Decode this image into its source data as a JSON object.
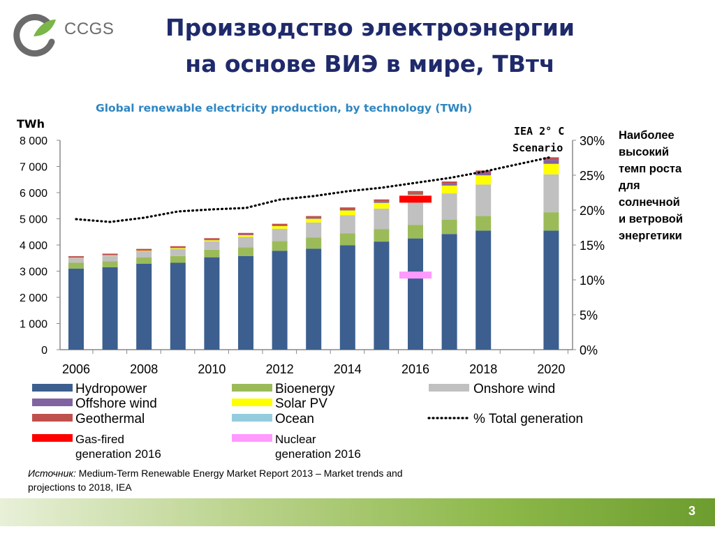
{
  "logo": {
    "text": "CCGS",
    "icon": "ccgs-leaf-ring-logo",
    "colors": {
      "ring": "#6b6b6b",
      "leaf": "#7ab648"
    }
  },
  "title": {
    "line1": "Производство электроэнергии",
    "line2": "на основе ВИЭ в мире, ТВтч"
  },
  "side_note": [
    "Наиболее",
    "высокий",
    "темп роста",
    "для",
    "солнечной",
    "и ветровой",
    "энергетики"
  ],
  "source": {
    "label": "Источник:",
    "text": " Medium-Term Renewable Energy Market Report 2013 – Market trends and projections to 2018, IEA"
  },
  "page_number": "3",
  "chart_data": {
    "type": "bar",
    "stacked": true,
    "title": "Global renewable electricity production, by technology (TWh)",
    "ylabel": "TWh",
    "ylim": [
      0,
      8000
    ],
    "y_ticks": [
      "0",
      "1 000",
      "2 000",
      "3 000",
      "4 000",
      "5 000",
      "6 000",
      "7 000",
      "8 000"
    ],
    "y2_lim": [
      0,
      30
    ],
    "y2_ticks": [
      "0%",
      "5%",
      "10%",
      "15%",
      "20%",
      "25%",
      "30%"
    ],
    "x_ticks": [
      "2006",
      "2008",
      "2010",
      "2012",
      "2014",
      "2016",
      "2018",
      "2020"
    ],
    "grid": false,
    "legend_placement": "bottom",
    "annotation": {
      "line1": "IEA 2° C",
      "line2": "Scenario"
    },
    "years": [
      2006,
      2007,
      2008,
      2009,
      2010,
      2011,
      2012,
      2013,
      2014,
      2015,
      2016,
      2017,
      2018,
      2020
    ],
    "series": [
      {
        "name": "Hydropower",
        "color": "#3c5f8f",
        "values": [
          3100,
          3150,
          3280,
          3320,
          3530,
          3580,
          3780,
          3860,
          3990,
          4130,
          4250,
          4420,
          4550,
          4550
        ]
      },
      {
        "name": "Bioenergy",
        "color": "#9bbb59",
        "values": [
          220,
          230,
          240,
          260,
          290,
          330,
          370,
          420,
          450,
          480,
          520,
          550,
          560,
          700
        ]
      },
      {
        "name": "Onshore wind",
        "color": "#c0c0c0",
        "values": [
          180,
          210,
          240,
          270,
          320,
          400,
          470,
          580,
          700,
          780,
          900,
          1000,
          1200,
          1450
        ]
      },
      {
        "name": "Solar PV",
        "color": "#ffff00",
        "values": [
          10,
          15,
          20,
          30,
          40,
          65,
          100,
          140,
          180,
          220,
          250,
          300,
          350,
          400
        ]
      },
      {
        "name": "Offshore wind",
        "color": "#8064a2",
        "values": [
          2,
          3,
          5,
          8,
          10,
          15,
          20,
          30,
          40,
          50,
          60,
          70,
          100,
          150
        ]
      },
      {
        "name": "Geothermal",
        "color": "#c0504d",
        "values": [
          60,
          60,
          65,
          65,
          70,
          70,
          70,
          75,
          75,
          80,
          80,
          85,
          85,
          100
        ]
      },
      {
        "name": "Ocean",
        "color": "#93cddd",
        "values": [
          1,
          1,
          1,
          1,
          1,
          1,
          1,
          1,
          1,
          1,
          1,
          1,
          1,
          1
        ]
      }
    ],
    "total_generation_pct": {
      "name": "% Total generation",
      "color": "#000000",
      "style": "dotted",
      "x": [
        2006,
        2007,
        2008,
        2009,
        2010,
        2011,
        2012,
        2013,
        2014,
        2015,
        2016,
        2017,
        2018,
        2020
      ],
      "y": [
        18.7,
        18.3,
        18.9,
        19.8,
        20.1,
        20.3,
        21.5,
        22.0,
        22.7,
        23.2,
        23.9,
        24.6,
        25.5,
        27.6
      ]
    },
    "markers": [
      {
        "name": "Gas-fired generation 2016",
        "color": "#ff0000",
        "year": 2016,
        "value": 5750
      },
      {
        "name": "Nuclear generation 2016",
        "color": "#ff99ff",
        "year": 2016,
        "value": 2850
      }
    ],
    "legend": [
      {
        "label": "Hydropower",
        "color": "#3c5f8f"
      },
      {
        "label": "Bioenergy",
        "color": "#9bbb59"
      },
      {
        "label": "Onshore wind",
        "color": "#c0c0c0"
      },
      {
        "label": "Offshore wind",
        "color": "#8064a2"
      },
      {
        "label": "Solar PV",
        "color": "#ffff00"
      },
      {
        "label": "Geothermal",
        "color": "#c0504d"
      },
      {
        "label": "Ocean",
        "color": "#93cddd"
      },
      {
        "label": "% Total generation",
        "color": "#000000",
        "dotted": true
      },
      {
        "label": "Gas-fired",
        "label2": "generation 2016",
        "color": "#ff0000"
      },
      {
        "label": "Nuclear",
        "label2": "generation 2016",
        "color": "#ff99ff"
      }
    ]
  }
}
